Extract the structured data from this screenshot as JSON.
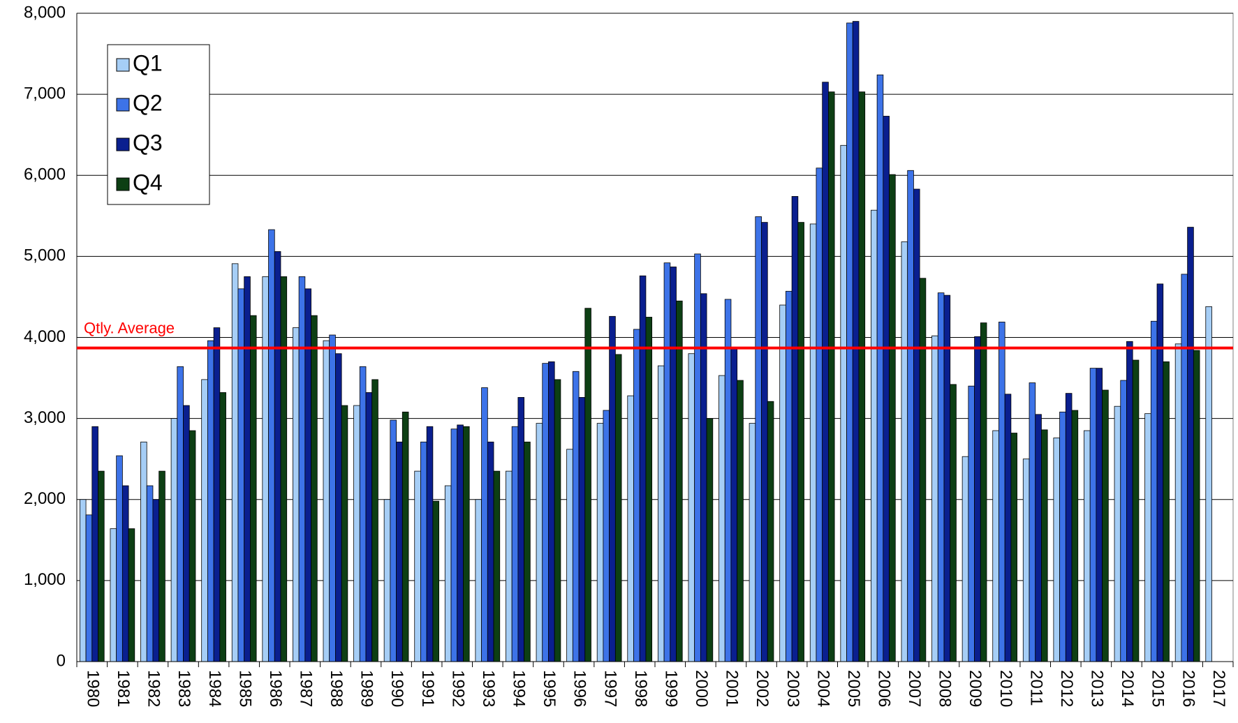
{
  "chart_data": {
    "type": "bar",
    "categories": [
      "1980",
      "1981",
      "1982",
      "1983",
      "1984",
      "1985",
      "1986",
      "1987",
      "1988",
      "1989",
      "1990",
      "1991",
      "1992",
      "1993",
      "1994",
      "1995",
      "1996",
      "1997",
      "1998",
      "1999",
      "2000",
      "2001",
      "2002",
      "2003",
      "2004",
      "2005",
      "2006",
      "2007",
      "2008",
      "2009",
      "2010",
      "2011",
      "2012",
      "2013",
      "2014",
      "2015",
      "2016",
      "2017"
    ],
    "series": [
      {
        "name": "Q1",
        "color": "#a6cef6",
        "values": [
          2000,
          1640,
          2710,
          3000,
          3480,
          4910,
          4750,
          4120,
          3960,
          3160,
          2000,
          2350,
          2170,
          2000,
          2350,
          2940,
          2620,
          2940,
          3280,
          3650,
          3800,
          3530,
          2940,
          4400,
          5400,
          6370,
          5570,
          5180,
          4020,
          2530,
          2850,
          2500,
          2760,
          2850,
          3150,
          3060,
          3920,
          4380
        ]
      },
      {
        "name": "Q2",
        "color": "#3d73e8",
        "values": [
          1810,
          2540,
          2170,
          3640,
          3960,
          4600,
          5330,
          4750,
          4030,
          3640,
          2980,
          2710,
          2870,
          3380,
          2900,
          3680,
          3580,
          3100,
          4100,
          4920,
          5030,
          4470,
          5490,
          4570,
          6090,
          7880,
          7240,
          6060,
          4550,
          3400,
          4190,
          3440,
          3080,
          3620,
          3470,
          4200,
          4780,
          null
        ]
      },
      {
        "name": "Q3",
        "color": "#0a1f8f",
        "values": [
          2900,
          2170,
          2000,
          3160,
          4120,
          4750,
          5060,
          4600,
          3800,
          3320,
          2710,
          2900,
          2920,
          2710,
          3260,
          3700,
          3260,
          4260,
          4760,
          4870,
          4540,
          3860,
          5420,
          5740,
          7150,
          7900,
          6730,
          5830,
          4520,
          4010,
          3300,
          3050,
          3310,
          3620,
          3950,
          4660,
          5360,
          null
        ]
      },
      {
        "name": "Q4",
        "color": "#0d3f14",
        "values": [
          2350,
          1640,
          2350,
          2850,
          3320,
          4270,
          4750,
          4270,
          3160,
          3480,
          3080,
          1980,
          2900,
          2350,
          2710,
          3480,
          4360,
          3790,
          4250,
          4450,
          3000,
          3470,
          3210,
          5420,
          7030,
          7030,
          6010,
          4730,
          3420,
          4180,
          2820,
          2860,
          3100,
          3350,
          3720,
          3700,
          3840,
          null
        ]
      }
    ],
    "average": {
      "label": "Qtly. Average",
      "value": 3870,
      "color": "#ff0000"
    },
    "ylim": [
      0,
      8000
    ],
    "yticks": [
      0,
      {
        "value": 1000,
        "label": "1,000"
      },
      {
        "value": 2000,
        "label": "2,000"
      },
      {
        "value": 3000,
        "label": "3,000"
      },
      {
        "value": 4000,
        "label": "4,000"
      },
      {
        "value": 5000,
        "label": "5,000"
      },
      {
        "value": 6000,
        "label": "6,000"
      },
      {
        "value": 7000,
        "label": "7,000"
      },
      {
        "value": 8000,
        "label": "8,000"
      }
    ],
    "grid": true,
    "legend": "top-left"
  }
}
